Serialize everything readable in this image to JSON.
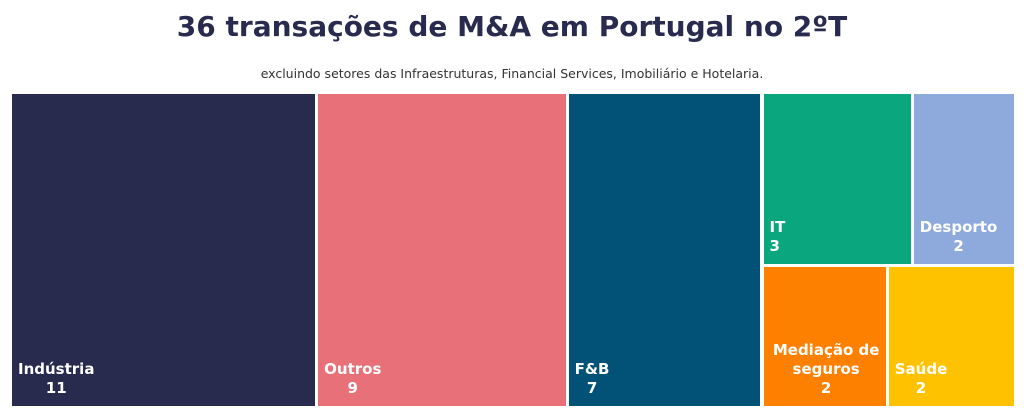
{
  "title": "36 transações de M&A em Portugal no 2ºT",
  "subtitle": "excluindo setores das Infraestruturas, Financial Services, Imobiliário e Hotelaria.",
  "chart_data": {
    "type": "treemap",
    "total": 36,
    "items": [
      {
        "id": "industria",
        "label": "Indústria",
        "value": 11,
        "color": "#282a4e"
      },
      {
        "id": "outros",
        "label": "Outros",
        "value": 9,
        "color": "#e87078"
      },
      {
        "id": "fb",
        "label": "F&B",
        "value": 7,
        "color": "#015276"
      },
      {
        "id": "it",
        "label": "IT",
        "value": 3,
        "color": "#0aa77e"
      },
      {
        "id": "desporto",
        "label": "Desporto",
        "value": 2,
        "color": "#8eaadc"
      },
      {
        "id": "mediacao",
        "label": "Mediação de seguros",
        "value": 2,
        "color": "#fd8001"
      },
      {
        "id": "saude",
        "label": "Saúde",
        "value": 2,
        "color": "#ffc201"
      }
    ]
  }
}
